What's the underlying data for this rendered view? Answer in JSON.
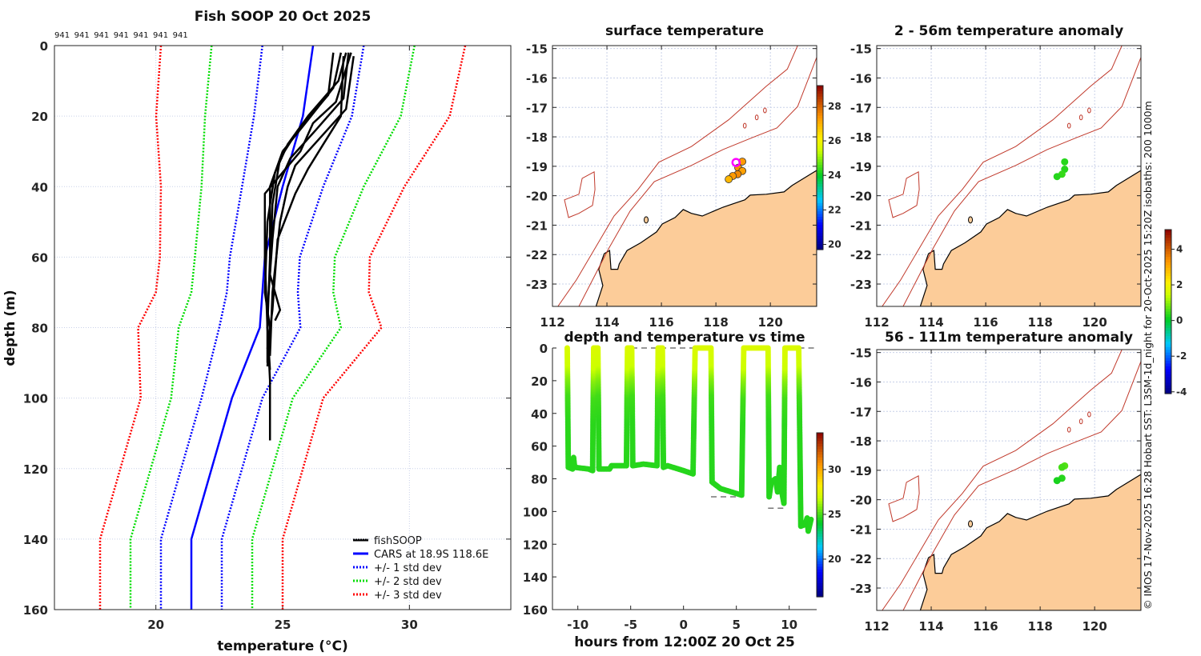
{
  "colors": {
    "land": "#fccc99",
    "isobath": "#c0392b",
    "grid": "#c8d0e8",
    "cars": "#0000ff",
    "sd1": "#0000ff",
    "sd2": "#00dd00",
    "sd3": "#ff0000",
    "fish": "#000000",
    "marker": "#ff00ff"
  },
  "credit": "© IMOS 17-Nov-2025 16:28 Hobart SST: L3SM-1d_night for 20-Oct-2025 15:20Z isobaths: 200  1000m",
  "chart_data": [
    {
      "type": "line",
      "title": "Fish SOOP 20 Oct 2025",
      "profile_ids": [
        "941",
        "941",
        "941",
        "941",
        "941",
        "941",
        "941"
      ],
      "xlabel": "temperature (°C)",
      "ylabel": "depth (m)",
      "xlim": [
        16,
        34
      ],
      "ylim": [
        0,
        160
      ],
      "y_reversed": true,
      "xticks": [
        20,
        25,
        30
      ],
      "yticks": [
        0,
        20,
        40,
        60,
        80,
        100,
        120,
        140,
        160
      ],
      "grid": true,
      "legend_position": "bottom-right",
      "legend": [
        "fishSOOP",
        "CARS at 18.9S 118.6E",
        "+/- 1 std dev",
        "+/- 2 std dev",
        "+/- 3 std dev"
      ],
      "cars": {
        "depth": [
          0,
          20,
          40,
          60,
          70,
          80,
          100,
          120,
          140,
          160
        ],
        "mean": [
          26.2,
          25.8,
          25.0,
          24.3,
          24.2,
          24.1,
          23.0,
          22.2,
          21.4,
          21.4
        ],
        "std": [
          2.0,
          1.93,
          1.6,
          1.38,
          1.4,
          1.6,
          1.2,
          1.2,
          1.2,
          1.2
        ]
      },
      "fishsoop_profiles": [
        [
          [
            27.3,
            2
          ],
          [
            27.0,
            12
          ],
          [
            25.9,
            22
          ],
          [
            25.0,
            30
          ],
          [
            24.5,
            40
          ],
          [
            24.5,
            60
          ],
          [
            24.4,
            80
          ],
          [
            24.5,
            95
          ],
          [
            24.5,
            112
          ]
        ],
        [
          [
            27.6,
            2
          ],
          [
            27.4,
            15
          ],
          [
            26.3,
            24
          ],
          [
            25.3,
            32
          ],
          [
            24.8,
            40
          ],
          [
            24.6,
            55
          ],
          [
            24.4,
            75
          ],
          [
            24.4,
            90
          ]
        ],
        [
          [
            27.8,
            3
          ],
          [
            27.5,
            18
          ],
          [
            26.5,
            26
          ],
          [
            25.5,
            34
          ],
          [
            25.2,
            40
          ],
          [
            24.9,
            50
          ],
          [
            24.6,
            70
          ],
          [
            24.5,
            88
          ]
        ],
        [
          [
            27.5,
            2
          ],
          [
            27.2,
            10
          ],
          [
            26.0,
            20
          ],
          [
            25.2,
            28
          ],
          [
            24.7,
            36
          ],
          [
            24.4,
            50
          ],
          [
            24.3,
            70
          ],
          [
            24.5,
            80
          ],
          [
            24.4,
            91
          ]
        ],
        [
          [
            27.0,
            2
          ],
          [
            26.8,
            14
          ],
          [
            25.6,
            24
          ],
          [
            24.9,
            32
          ],
          [
            24.6,
            45
          ],
          [
            24.5,
            65
          ],
          [
            24.9,
            75
          ],
          [
            24.7,
            78
          ]
        ],
        [
          [
            27.4,
            3
          ],
          [
            27.3,
            20
          ],
          [
            26.6,
            28
          ],
          [
            26.0,
            35
          ],
          [
            25.5,
            42
          ],
          [
            24.8,
            55
          ],
          [
            24.6,
            75
          ],
          [
            24.4,
            86
          ]
        ],
        [
          [
            27.7,
            2
          ],
          [
            27.1,
            16
          ],
          [
            26.2,
            22
          ],
          [
            25.7,
            30
          ],
          [
            25.0,
            36
          ],
          [
            24.3,
            42
          ],
          [
            24.3,
            60
          ],
          [
            24.4,
            80
          ],
          [
            24.5,
            92
          ]
        ]
      ]
    },
    {
      "type": "scatter",
      "title": "depth and temperature vs time",
      "xlabel": "hours from 12:00Z 20 Oct 25",
      "xlim": [
        -12.4,
        12.6
      ],
      "ylim": [
        0,
        160
      ],
      "y_reversed": true,
      "xticks": [
        -10,
        -5,
        0,
        5,
        10
      ],
      "yticks": [
        0,
        20,
        40,
        60,
        80,
        100,
        120,
        140,
        160
      ],
      "colorbar": {
        "range": [
          15.8,
          34.1
        ],
        "ticks": [
          20,
          25,
          30
        ]
      },
      "track_hours_depth": [
        [
          -11.0,
          0
        ],
        [
          -10.9,
          73
        ],
        [
          -10.5,
          74
        ],
        [
          -10.4,
          67
        ],
        [
          -10.3,
          73
        ],
        [
          -9,
          74
        ],
        [
          -8.6,
          75
        ],
        [
          -8.5,
          0
        ],
        [
          -8.1,
          0
        ],
        [
          -8.0,
          74
        ],
        [
          -7,
          74
        ],
        [
          -6.8,
          72
        ],
        [
          -5.4,
          72
        ],
        [
          -5.3,
          0
        ],
        [
          -4.9,
          0
        ],
        [
          -4.8,
          72
        ],
        [
          -3.8,
          71
        ],
        [
          -2.5,
          72
        ],
        [
          -2.4,
          0
        ],
        [
          -2.0,
          0
        ],
        [
          -1.9,
          73
        ],
        [
          -1.5,
          72
        ],
        [
          0,
          75
        ],
        [
          0.9,
          77
        ],
        [
          1.1,
          0
        ],
        [
          2.6,
          0
        ],
        [
          2.7,
          82
        ],
        [
          3.5,
          86
        ],
        [
          5.5,
          90
        ],
        [
          5.7,
          0
        ],
        [
          8.0,
          0
        ],
        [
          8.1,
          91
        ],
        [
          8.3,
          82
        ],
        [
          8.7,
          80
        ],
        [
          8.9,
          88
        ],
        [
          9.1,
          73
        ],
        [
          9.3,
          88
        ],
        [
          9.5,
          95
        ],
        [
          9.6,
          0
        ],
        [
          10.9,
          0
        ],
        [
          11.1,
          109
        ],
        [
          11.5,
          108
        ],
        [
          11.7,
          104
        ],
        [
          11.8,
          112
        ],
        [
          12.1,
          104
        ]
      ],
      "temperature_vs_depth": [
        [
          0,
          27.2
        ],
        [
          12,
          26.8
        ],
        [
          20,
          25.8
        ],
        [
          30,
          24.9
        ],
        [
          45,
          24.6
        ],
        [
          160,
          24.4
        ]
      ],
      "bottom_depth_segments": [
        {
          "from": -11.0,
          "to": -5.3,
          "depth": 73,
          "color": "#000000"
        },
        {
          "from": -4.9,
          "to": 1.1,
          "depth": 0,
          "color": "#777777"
        },
        {
          "from": 10.9,
          "to": 12.6,
          "depth": 0,
          "color": "#777777"
        },
        {
          "from": 2.6,
          "to": 5.7,
          "depth": 91,
          "color": "#777777"
        },
        {
          "from": 8.0,
          "to": 9.6,
          "depth": 98,
          "color": "#777777"
        }
      ]
    },
    {
      "type": "scatter",
      "title": "surface temperature",
      "xlim": [
        112,
        121.7
      ],
      "ylim": [
        -23.76,
        -14.9
      ],
      "xticks": [
        112,
        114,
        116,
        118,
        120
      ],
      "yticks": [
        -15,
        -16,
        -17,
        -18,
        -19,
        -20,
        -21,
        -22,
        -23
      ],
      "colorbar": {
        "range": [
          19.7,
          29.2
        ],
        "ticks": [
          20,
          22,
          24,
          26,
          28
        ]
      },
      "points": [
        [
          118.97,
          -18.84,
          27.3
        ],
        [
          118.82,
          -19.05,
          27.4
        ],
        [
          118.97,
          -19.16,
          27.2
        ],
        [
          118.8,
          -19.27,
          27.5
        ],
        [
          118.62,
          -19.33,
          27.3
        ],
        [
          118.47,
          -19.44,
          26.9
        ]
      ],
      "highlight": [
        118.74,
        -18.87
      ]
    },
    {
      "type": "scatter",
      "title": "2 - 56m temperature anomaly",
      "xlim": [
        112,
        121.7
      ],
      "ylim": [
        -23.76,
        -14.9
      ],
      "xticks": [
        112,
        114,
        116,
        118,
        120
      ],
      "yticks": [
        -15,
        -16,
        -17,
        -18,
        -19,
        -20,
        -21,
        -22,
        -23
      ],
      "colorbar": {
        "range": [
          -4.1,
          5.1
        ],
        "ticks": [
          4,
          2,
          0,
          -2,
          -4
        ]
      },
      "points": [
        [
          118.9,
          -18.85,
          0.3
        ],
        [
          118.9,
          -19.1,
          0.3
        ],
        [
          118.8,
          -19.27,
          0.4
        ],
        [
          118.62,
          -19.35,
          0.3
        ]
      ]
    },
    {
      "type": "scatter",
      "title": "56 - 111m temperature anomaly",
      "xlim": [
        112,
        121.7
      ],
      "ylim": [
        -23.76,
        -14.9
      ],
      "xticks": [
        112,
        114,
        116,
        118,
        120
      ],
      "yticks": [
        -15,
        -16,
        -17,
        -18,
        -19,
        -20,
        -21,
        -22,
        -23
      ],
      "points": [
        [
          118.9,
          -18.85,
          0.6
        ],
        [
          118.8,
          -18.9,
          0.5
        ],
        [
          118.8,
          -19.27,
          0.3
        ],
        [
          118.62,
          -19.35,
          0.2
        ]
      ]
    }
  ],
  "geography": {
    "coast": [
      [
        121.7,
        -19.14
      ],
      [
        120.8,
        -19.65
      ],
      [
        120.5,
        -19.87
      ],
      [
        119.85,
        -19.95
      ],
      [
        119.26,
        -19.98
      ],
      [
        119.06,
        -20.14
      ],
      [
        118.26,
        -20.39
      ],
      [
        117.5,
        -20.69
      ],
      [
        117.1,
        -20.6
      ],
      [
        116.8,
        -20.47
      ],
      [
        116.5,
        -20.74
      ],
      [
        116.03,
        -20.96
      ],
      [
        115.82,
        -21.23
      ],
      [
        115.24,
        -21.6
      ],
      [
        114.74,
        -21.86
      ],
      [
        114.45,
        -22.32
      ],
      [
        114.4,
        -22.5
      ],
      [
        114.15,
        -22.5
      ],
      [
        114.1,
        -21.86
      ],
      [
        113.9,
        -21.97
      ],
      [
        113.7,
        -22.5
      ],
      [
        113.85,
        -23.05
      ],
      [
        113.6,
        -23.76
      ],
      [
        121.7,
        -23.76
      ]
    ],
    "isobath_200": [
      [
        112.97,
        -23.76
      ],
      [
        113.56,
        -22.7
      ],
      [
        114.06,
        -21.8
      ],
      [
        114.85,
        -20.52
      ],
      [
        115.74,
        -19.52
      ],
      [
        117.1,
        -18.97
      ],
      [
        118.26,
        -18.43
      ],
      [
        119.35,
        -18.02
      ],
      [
        120.24,
        -17.7
      ],
      [
        121.0,
        -16.97
      ],
      [
        121.7,
        -15.3
      ]
    ],
    "isobath_1000": [
      [
        112.2,
        -23.76
      ],
      [
        112.88,
        -22.86
      ],
      [
        113.68,
        -21.6
      ],
      [
        114.26,
        -20.69
      ],
      [
        115.14,
        -19.79
      ],
      [
        115.91,
        -18.86
      ],
      [
        117.1,
        -18.33
      ],
      [
        118.47,
        -17.42
      ],
      [
        119.85,
        -16.28
      ],
      [
        120.62,
        -15.7
      ],
      [
        121.0,
        -14.9
      ]
    ],
    "plateau_contour": [
      [
        112.44,
        -20.14
      ],
      [
        112.97,
        -19.95
      ],
      [
        113.09,
        -19.41
      ],
      [
        113.53,
        -19.19
      ],
      [
        113.56,
        -19.79
      ],
      [
        113.47,
        -20.33
      ],
      [
        112.97,
        -20.6
      ],
      [
        112.59,
        -20.74
      ],
      [
        112.44,
        -20.14
      ]
    ],
    "reefs": [
      [
        119.06,
        -17.62
      ],
      [
        119.5,
        -17.34
      ],
      [
        119.8,
        -17.1
      ]
    ],
    "islands": [
      [
        115.44,
        -20.82
      ]
    ]
  }
}
